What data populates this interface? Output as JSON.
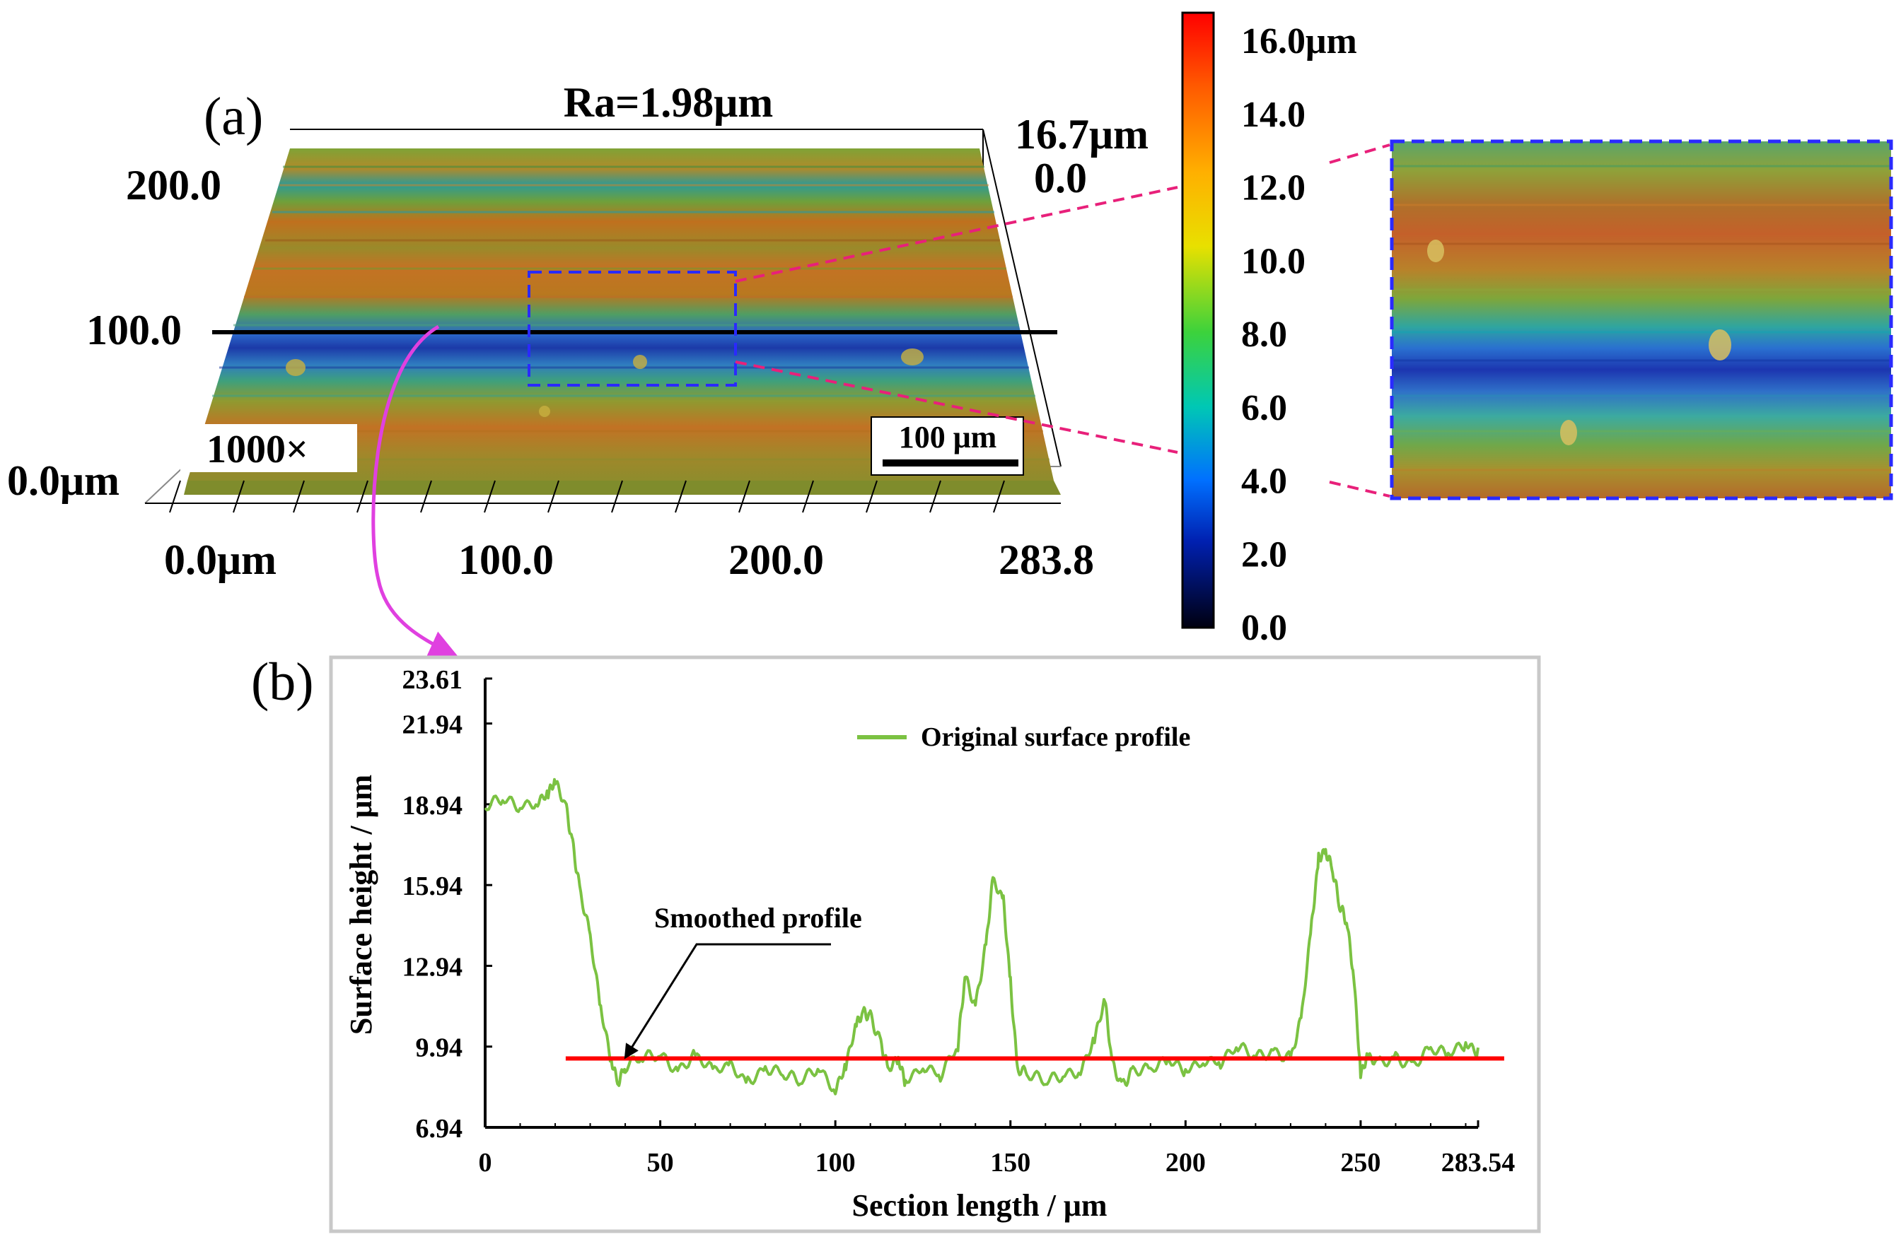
{
  "panel_a": {
    "label": "(a)",
    "ra_label": "Ra=1.98μm",
    "magnification": "1000×",
    "scale_bar_label": "100 μm",
    "x_ticks": [
      "0.0μm",
      "100.0",
      "200.0",
      "283.8"
    ],
    "y_ticks": [
      "200.0",
      "100.0"
    ],
    "z_min_label": "0.0μm",
    "z_top_label": "16.7μm",
    "z_zero_label": "0.0",
    "colorbar": {
      "ticks": [
        "16.0μm",
        "14.0",
        "12.0",
        "10.0",
        "8.0",
        "6.0",
        "4.0",
        "2.0",
        "0.0"
      ],
      "stops": [
        "#ff0000",
        "#ff6a00",
        "#ffb000",
        "#f0e000",
        "#7fdc00",
        "#00c86a",
        "#00b4d2",
        "#0050ff",
        "#000010"
      ]
    },
    "surface_colors": [
      "#8c9e2e",
      "#b4781e",
      "#3ea08a",
      "#c86a1e",
      "#6f9a30",
      "#2f78c8",
      "#1d3fb0",
      "#4aa078",
      "#9a8a28",
      "#bf7a26"
    ]
  },
  "panel_b": {
    "label": "(b)",
    "legend_label": "Original surface profile",
    "annotation": "Smoothed profile",
    "colors": {
      "original": "#7bc242",
      "smoothed": "#ff0000",
      "arrow": "#e040e0",
      "zoom_box": "#2a2aff",
      "zoom_lines": "#e8207a"
    }
  },
  "chart_data": {
    "type": "line",
    "title": "",
    "xlabel": "Section length / μm",
    "ylabel": "Surface height / μm",
    "xlim": [
      0,
      283.54
    ],
    "ylim": [
      6.94,
      23.61
    ],
    "x_ticks": [
      "0",
      "50",
      "100",
      "150",
      "200",
      "250",
      "283.54"
    ],
    "x_tick_values": [
      0,
      50,
      100,
      150,
      200,
      250,
      283.54
    ],
    "y_ticks": [
      "23.61",
      "21.94",
      "18.94",
      "15.94",
      "12.94",
      "9.94",
      "6.94"
    ],
    "y_tick_values": [
      23.61,
      21.94,
      18.94,
      15.94,
      12.94,
      9.94,
      6.94
    ],
    "series": [
      {
        "name": "Original surface profile",
        "x": [
          0,
          5,
          10,
          15,
          18,
          20,
          23,
          25,
          27,
          30,
          33,
          36,
          38,
          40,
          45,
          50,
          55,
          60,
          65,
          70,
          75,
          80,
          85,
          90,
          95,
          100,
          103,
          106,
          108,
          110,
          113,
          115,
          118,
          120,
          125,
          130,
          135,
          137,
          140,
          143,
          145,
          148,
          150,
          152,
          155,
          160,
          165,
          170,
          174,
          177,
          179,
          182,
          185,
          190,
          195,
          200,
          205,
          210,
          215,
          220,
          225,
          230,
          233,
          236,
          238,
          240,
          242,
          244,
          246,
          248,
          250,
          252,
          255,
          260,
          265,
          270,
          275,
          280,
          283.54
        ],
        "y": [
          18.8,
          19.0,
          18.9,
          19.2,
          19.4,
          19.6,
          18.8,
          17.6,
          15.9,
          13.9,
          11.2,
          9.5,
          8.8,
          9.2,
          9.4,
          9.6,
          9.2,
          9.7,
          8.9,
          9.1,
          8.7,
          9.3,
          8.9,
          8.5,
          9.2,
          8.5,
          9.3,
          10.6,
          11.1,
          11.2,
          10.2,
          9.0,
          9.3,
          8.7,
          9.4,
          8.9,
          9.8,
          12.5,
          11.6,
          13.8,
          16.0,
          15.2,
          12.4,
          9.3,
          8.9,
          8.5,
          8.9,
          9.2,
          10.3,
          11.5,
          9.2,
          8.6,
          9.2,
          9.0,
          9.3,
          9.1,
          9.6,
          9.4,
          9.8,
          9.5,
          9.9,
          9.6,
          10.8,
          14.3,
          17.0,
          17.4,
          16.5,
          15.0,
          14.6,
          12.8,
          9.0,
          9.4,
          9.2,
          9.6,
          9.4,
          9.8,
          9.5,
          10.1,
          9.9
        ]
      },
      {
        "name": "Smoothed profile",
        "x": [
          23,
          291
        ],
        "y": [
          9.5,
          9.5
        ]
      }
    ],
    "legend": "top-center"
  }
}
